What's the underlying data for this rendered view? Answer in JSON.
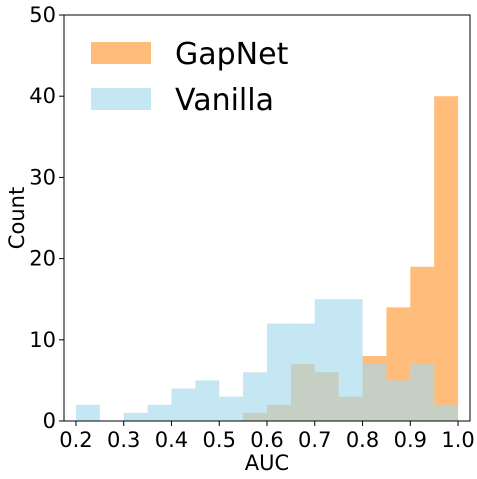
{
  "chart_data": {
    "type": "histogram",
    "xlabel": "AUC",
    "ylabel": "Count",
    "xlim": [
      0.175,
      1.025
    ],
    "ylim": [
      0,
      50
    ],
    "xticks": [
      "0.2",
      "0.3",
      "0.4",
      "0.5",
      "0.6",
      "0.7",
      "0.8",
      "0.9",
      "1.0"
    ],
    "yticks": [
      "0",
      "10",
      "20",
      "30",
      "40",
      "50"
    ],
    "legend_position": "top-left",
    "grid": false,
    "bin_edges": [
      0.2,
      0.25,
      0.3,
      0.35,
      0.4,
      0.45,
      0.5,
      0.55,
      0.6,
      0.65,
      0.7,
      0.75,
      0.8,
      0.85,
      0.9,
      0.95,
      1.0
    ],
    "series": [
      {
        "name": "GapNet",
        "color": "#ffa64d",
        "opacity": 0.75,
        "counts": [
          0,
          0,
          0,
          0,
          0,
          0,
          0,
          1,
          2,
          7,
          6,
          3,
          8,
          14,
          19,
          40
        ]
      },
      {
        "name": "Vanilla",
        "color": "#a6d8ec",
        "opacity": 0.65,
        "counts": [
          2,
          0,
          1,
          2,
          4,
          5,
          3,
          6,
          12,
          12,
          15,
          15,
          7,
          5,
          7,
          2
        ]
      }
    ]
  }
}
